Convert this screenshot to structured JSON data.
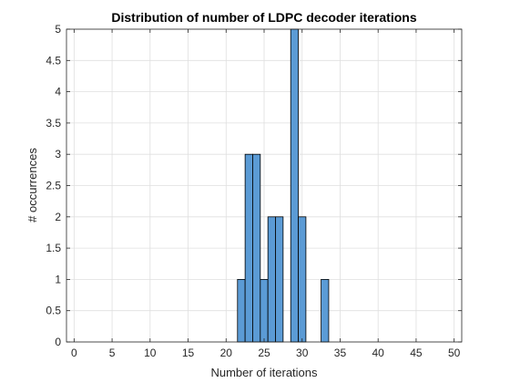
{
  "chart_data": {
    "type": "bar",
    "title": "Distribution of number of LDPC decoder iterations",
    "xlabel": "Number of iterations",
    "ylabel": "# occurrences",
    "xlim": [
      -1,
      51
    ],
    "ylim": [
      0,
      5
    ],
    "xticks": [
      "0",
      "5",
      "10",
      "15",
      "20",
      "25",
      "30",
      "35",
      "40",
      "45",
      "50"
    ],
    "yticks": [
      "0",
      "0.5",
      "1",
      "1.5",
      "2",
      "2.5",
      "3",
      "3.5",
      "4",
      "4.5",
      "5"
    ],
    "grid": true,
    "bar_width": 1,
    "bars": [
      {
        "x": 22,
        "value": 1
      },
      {
        "x": 23,
        "value": 3
      },
      {
        "x": 24,
        "value": 3
      },
      {
        "x": 25,
        "value": 1
      },
      {
        "x": 26,
        "value": 2
      },
      {
        "x": 27,
        "value": 2
      },
      {
        "x": 29,
        "value": 5
      },
      {
        "x": 30,
        "value": 2
      },
      {
        "x": 33,
        "value": 1
      }
    ],
    "colors": {
      "bar_fill": "#5b9bd5",
      "bar_edge": "#000000",
      "grid": "#dfdfdf",
      "axis": "#262626"
    }
  }
}
